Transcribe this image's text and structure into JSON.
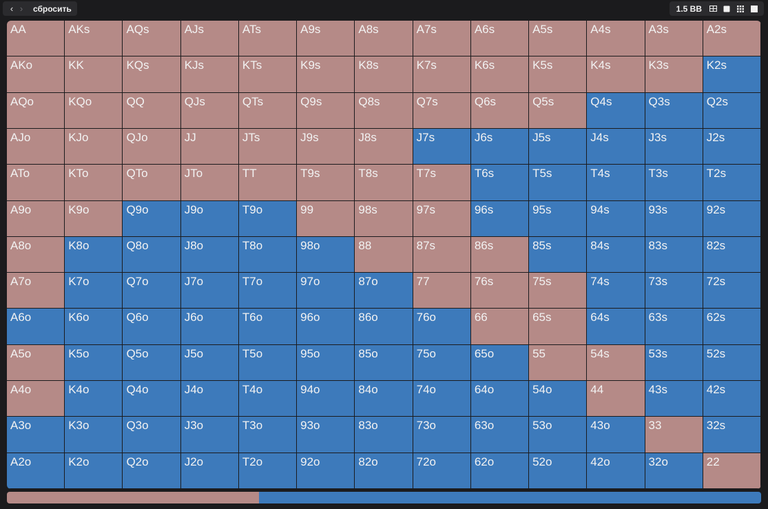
{
  "toolbar": {
    "back_icon": "chevron-left-icon",
    "forward_icon": "chevron-right-icon",
    "reset_label": "сбросить",
    "bb_label": "1.5 BB",
    "view_icons": [
      "layout-split-icon",
      "square-icon",
      "grid-icon",
      "square-filled-icon"
    ]
  },
  "colors": {
    "raise": "#b58a87",
    "fold": "#3d7abb"
  },
  "grid": {
    "rows": [
      [
        "AA",
        "AKs",
        "AQs",
        "AJs",
        "ATs",
        "A9s",
        "A8s",
        "A7s",
        "A6s",
        "A5s",
        "A4s",
        "A3s",
        "A2s"
      ],
      [
        "AKo",
        "KK",
        "KQs",
        "KJs",
        "KTs",
        "K9s",
        "K8s",
        "K7s",
        "K6s",
        "K5s",
        "K4s",
        "K3s",
        "K2s"
      ],
      [
        "AQo",
        "KQo",
        "QQ",
        "QJs",
        "QTs",
        "Q9s",
        "Q8s",
        "Q7s",
        "Q6s",
        "Q5s",
        "Q4s",
        "Q3s",
        "Q2s"
      ],
      [
        "AJo",
        "KJo",
        "QJo",
        "JJ",
        "JTs",
        "J9s",
        "J8s",
        "J7s",
        "J6s",
        "J5s",
        "J4s",
        "J3s",
        "J2s"
      ],
      [
        "ATo",
        "KTo",
        "QTo",
        "JTo",
        "TT",
        "T9s",
        "T8s",
        "T7s",
        "T6s",
        "T5s",
        "T4s",
        "T3s",
        "T2s"
      ],
      [
        "A9o",
        "K9o",
        "Q9o",
        "J9o",
        "T9o",
        "99",
        "98s",
        "97s",
        "96s",
        "95s",
        "94s",
        "93s",
        "92s"
      ],
      [
        "A8o",
        "K8o",
        "Q8o",
        "J8o",
        "T8o",
        "98o",
        "88",
        "87s",
        "86s",
        "85s",
        "84s",
        "83s",
        "82s"
      ],
      [
        "A7o",
        "K7o",
        "Q7o",
        "J7o",
        "T7o",
        "97o",
        "87o",
        "77",
        "76s",
        "75s",
        "74s",
        "73s",
        "72s"
      ],
      [
        "A6o",
        "K6o",
        "Q6o",
        "J6o",
        "T6o",
        "96o",
        "86o",
        "76o",
        "66",
        "65s",
        "64s",
        "63s",
        "62s"
      ],
      [
        "A5o",
        "K5o",
        "Q5o",
        "J5o",
        "T5o",
        "95o",
        "85o",
        "75o",
        "65o",
        "55",
        "54s",
        "53s",
        "52s"
      ],
      [
        "A4o",
        "K4o",
        "Q4o",
        "J4o",
        "T4o",
        "94o",
        "84o",
        "74o",
        "64o",
        "54o",
        "44",
        "43s",
        "42s"
      ],
      [
        "A3o",
        "K3o",
        "Q3o",
        "J3o",
        "T3o",
        "93o",
        "83o",
        "73o",
        "63o",
        "53o",
        "43o",
        "33",
        "32s"
      ],
      [
        "A2o",
        "K2o",
        "Q2o",
        "J2o",
        "T2o",
        "92o",
        "82o",
        "72o",
        "62o",
        "52o",
        "42o",
        "32o",
        "22"
      ]
    ],
    "actions": [
      [
        "R",
        "R",
        "R",
        "R",
        "R",
        "R",
        "R",
        "R",
        "R",
        "R",
        "R",
        "R",
        "R"
      ],
      [
        "R",
        "R",
        "R",
        "R",
        "R",
        "R",
        "R",
        "R",
        "R",
        "R",
        "R",
        "R",
        "F"
      ],
      [
        "R",
        "R",
        "R",
        "R",
        "R",
        "R",
        "R",
        "R",
        "R",
        "R",
        "F",
        "F",
        "F"
      ],
      [
        "R",
        "R",
        "R",
        "R",
        "R",
        "R",
        "R",
        "F",
        "F",
        "F",
        "F",
        "F",
        "F"
      ],
      [
        "R",
        "R",
        "R",
        "R",
        "R",
        "R",
        "R",
        "R",
        "F",
        "F",
        "F",
        "F",
        "F"
      ],
      [
        "R",
        "R",
        "F",
        "F",
        "F",
        "R",
        "R",
        "R",
        "F",
        "F",
        "F",
        "F",
        "F"
      ],
      [
        "R",
        "F",
        "F",
        "F",
        "F",
        "F",
        "R",
        "R",
        "R",
        "F",
        "F",
        "F",
        "F"
      ],
      [
        "R",
        "F",
        "F",
        "F",
        "F",
        "F",
        "F",
        "R",
        "R",
        "R",
        "F",
        "F",
        "F"
      ],
      [
        "F",
        "F",
        "F",
        "F",
        "F",
        "F",
        "F",
        "F",
        "R",
        "R",
        "F",
        "F",
        "F"
      ],
      [
        "R",
        "F",
        "F",
        "F",
        "F",
        "F",
        "F",
        "F",
        "F",
        "R",
        "R",
        "F",
        "F"
      ],
      [
        "R",
        "F",
        "F",
        "F",
        "F",
        "F",
        "F",
        "F",
        "F",
        "F",
        "R",
        "F",
        "F"
      ],
      [
        "F",
        "F",
        "F",
        "F",
        "F",
        "F",
        "F",
        "F",
        "F",
        "F",
        "F",
        "R",
        "F"
      ],
      [
        "F",
        "F",
        "F",
        "F",
        "F",
        "F",
        "F",
        "F",
        "F",
        "F",
        "F",
        "F",
        "R"
      ]
    ]
  },
  "frequency": {
    "raise_fraction": 0.334,
    "fold_fraction": 0.666
  }
}
